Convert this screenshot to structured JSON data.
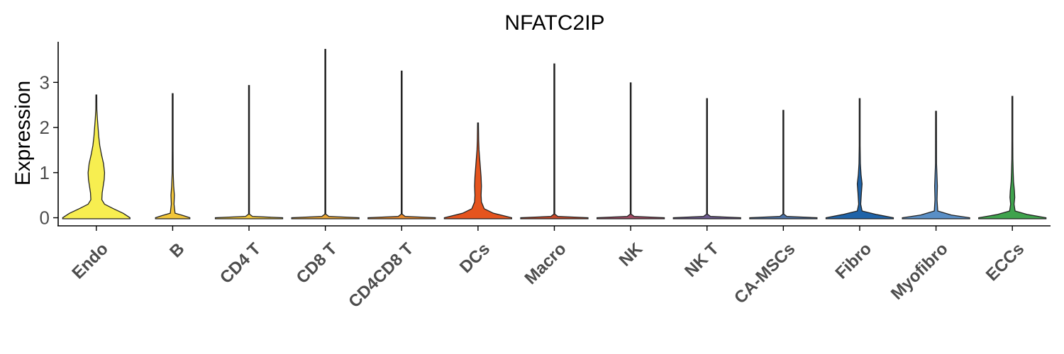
{
  "chart_data": {
    "type": "violin",
    "title": "NFATC2IP",
    "ylabel": "Expression",
    "xlabel": "",
    "ylim": [
      -0.18,
      3.9
    ],
    "yticks": [
      0,
      1,
      2,
      3
    ],
    "grid": false,
    "legend": "none",
    "categories": [
      "Endo",
      "B",
      "CD4 T",
      "CD8 T",
      "CD4CD8 T",
      "DCs",
      "Macro",
      "NK",
      "NK T",
      "CA-MSCs",
      "Fibro",
      "Myofibro",
      "ECCs"
    ],
    "colors": [
      "#F7EE50",
      "#F2C63A",
      "#F2C63A",
      "#E8A535",
      "#E88A2B",
      "#E5541E",
      "#C94A2A",
      "#A14C64",
      "#6C5A8E",
      "#4E74A8",
      "#1F63A8",
      "#5A8FC6",
      "#3FA34D"
    ],
    "max_values": [
      2.72,
      2.75,
      2.93,
      3.73,
      3.25,
      2.1,
      3.41,
      2.99,
      2.64,
      2.38,
      2.64,
      2.36,
      2.69
    ],
    "density_profiles": [
      [
        [
          0,
          0.98
        ],
        [
          0.1,
          0.78
        ],
        [
          0.2,
          0.5
        ],
        [
          0.3,
          0.24
        ],
        [
          0.4,
          0.16
        ],
        [
          0.55,
          0.17
        ],
        [
          0.7,
          0.2
        ],
        [
          0.85,
          0.23
        ],
        [
          1.0,
          0.24
        ],
        [
          1.2,
          0.21
        ],
        [
          1.4,
          0.15
        ],
        [
          1.6,
          0.1
        ],
        [
          1.8,
          0.07
        ],
        [
          2.0,
          0.05
        ],
        [
          2.2,
          0.03
        ],
        [
          2.4,
          0.015
        ],
        [
          2.72,
          0
        ]
      ],
      [
        [
          0,
          0.5
        ],
        [
          0.05,
          0.3
        ],
        [
          0.1,
          0.07
        ],
        [
          0.3,
          0.04
        ],
        [
          0.5,
          0.05
        ],
        [
          0.7,
          0.03
        ],
        [
          1.0,
          0.015
        ],
        [
          1.5,
          0.008
        ],
        [
          2.75,
          0
        ]
      ],
      [
        [
          0,
          0.98
        ],
        [
          0.03,
          0.1
        ],
        [
          0.08,
          0.01
        ],
        [
          2.93,
          0
        ]
      ],
      [
        [
          0,
          0.98
        ],
        [
          0.03,
          0.1
        ],
        [
          0.08,
          0.01
        ],
        [
          3.73,
          0
        ]
      ],
      [
        [
          0,
          0.98
        ],
        [
          0.03,
          0.1
        ],
        [
          0.08,
          0.01
        ],
        [
          3.25,
          0
        ]
      ],
      [
        [
          0,
          0.98
        ],
        [
          0.1,
          0.45
        ],
        [
          0.2,
          0.18
        ],
        [
          0.35,
          0.1
        ],
        [
          0.5,
          0.09
        ],
        [
          0.7,
          0.1
        ],
        [
          0.9,
          0.09
        ],
        [
          1.1,
          0.07
        ],
        [
          1.3,
          0.05
        ],
        [
          1.5,
          0.03
        ],
        [
          1.7,
          0.02
        ],
        [
          2.1,
          0
        ]
      ],
      [
        [
          0,
          0.98
        ],
        [
          0.03,
          0.1
        ],
        [
          0.08,
          0.01
        ],
        [
          3.41,
          0
        ]
      ],
      [
        [
          0,
          0.98
        ],
        [
          0.03,
          0.1
        ],
        [
          0.08,
          0.01
        ],
        [
          2.99,
          0
        ]
      ],
      [
        [
          0,
          0.98
        ],
        [
          0.03,
          0.1
        ],
        [
          0.08,
          0.01
        ],
        [
          2.64,
          0
        ]
      ],
      [
        [
          0,
          0.98
        ],
        [
          0.03,
          0.1
        ],
        [
          0.08,
          0.01
        ],
        [
          2.38,
          0
        ]
      ],
      [
        [
          0,
          0.98
        ],
        [
          0.07,
          0.5
        ],
        [
          0.15,
          0.07
        ],
        [
          0.3,
          0.03
        ],
        [
          0.55,
          0.05
        ],
        [
          0.75,
          0.07
        ],
        [
          0.95,
          0.04
        ],
        [
          1.2,
          0.02
        ],
        [
          1.6,
          0.01
        ],
        [
          2.64,
          0
        ]
      ],
      [
        [
          0,
          0.98
        ],
        [
          0.06,
          0.45
        ],
        [
          0.15,
          0.05
        ],
        [
          0.4,
          0.03
        ],
        [
          0.7,
          0.04
        ],
        [
          0.9,
          0.03
        ],
        [
          1.2,
          0.015
        ],
        [
          2.36,
          0
        ]
      ],
      [
        [
          0,
          0.98
        ],
        [
          0.07,
          0.45
        ],
        [
          0.15,
          0.08
        ],
        [
          0.3,
          0.05
        ],
        [
          0.45,
          0.07
        ],
        [
          0.6,
          0.06
        ],
        [
          0.8,
          0.035
        ],
        [
          1.0,
          0.025
        ],
        [
          1.3,
          0.015
        ],
        [
          1.7,
          0.008
        ],
        [
          2.69,
          0
        ]
      ]
    ]
  }
}
